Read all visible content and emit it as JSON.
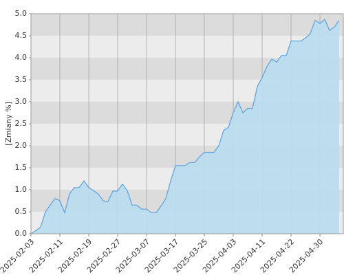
{
  "chart_data": {
    "type": "area",
    "y_label": "[Zmiany %]",
    "categories": [
      "2025-02-03",
      null,
      null,
      null,
      null,
      null,
      "2025-02-11",
      null,
      null,
      null,
      null,
      null,
      "2025-02-19",
      null,
      null,
      null,
      null,
      null,
      "2025-02-27",
      null,
      null,
      null,
      null,
      null,
      "2025-03-07",
      null,
      null,
      null,
      null,
      null,
      "2025-03-17",
      null,
      null,
      null,
      null,
      null,
      "2025-03-25",
      null,
      null,
      null,
      null,
      null,
      "2025-04-03",
      null,
      null,
      null,
      null,
      null,
      "2025-04-11",
      null,
      null,
      null,
      null,
      null,
      "2025-04-22",
      null,
      null,
      null,
      null,
      null,
      "2025-04-30",
      null,
      null,
      null,
      null
    ],
    "values": [
      0.0,
      0.07,
      0.15,
      0.5,
      0.65,
      0.8,
      0.75,
      0.48,
      0.9,
      1.05,
      1.05,
      1.2,
      1.05,
      0.98,
      0.9,
      0.75,
      0.73,
      0.97,
      0.97,
      1.13,
      0.98,
      0.65,
      0.65,
      0.56,
      0.56,
      0.48,
      0.48,
      0.63,
      0.8,
      1.2,
      1.55,
      1.55,
      1.55,
      1.62,
      1.62,
      1.75,
      1.85,
      1.85,
      1.85,
      2.0,
      2.35,
      2.42,
      2.75,
      3.0,
      2.75,
      2.85,
      2.85,
      3.35,
      3.55,
      3.8,
      3.97,
      3.9,
      4.05,
      4.05,
      4.38,
      4.38,
      4.38,
      4.45,
      4.55,
      4.85,
      4.78,
      4.87,
      4.62,
      4.7,
      4.85
    ],
    "color": "#5aa0e0",
    "fill": "#b9dcee",
    "ylim": [
      0,
      5
    ],
    "yticks": [
      {
        "value": 0,
        "label": "0.0"
      },
      0.5,
      {
        "value": 1,
        "label": "1.0"
      },
      1.5,
      {
        "value": 2,
        "label": "2.0"
      },
      2.5,
      {
        "value": 3,
        "label": "3.0"
      },
      3.5,
      {
        "value": 4,
        "label": "4.0"
      },
      4.5,
      {
        "value": 5,
        "label": "5.0"
      }
    ],
    "grid": true
  }
}
